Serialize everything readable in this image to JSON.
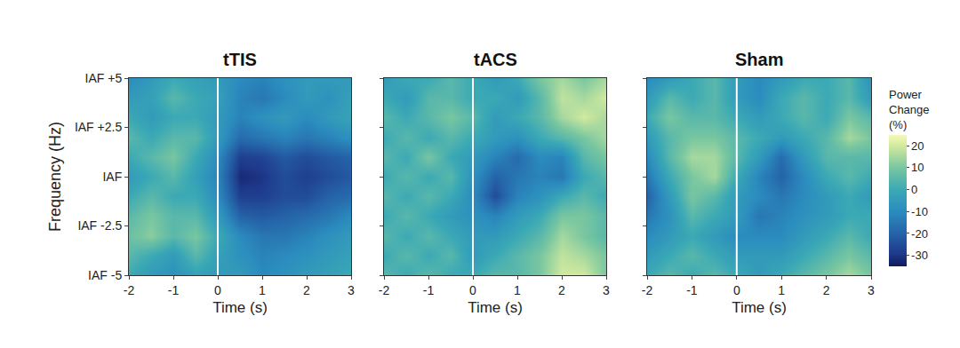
{
  "chart_data": [
    {
      "type": "heatmap",
      "title": "tTIS",
      "x_label": "Time (s)",
      "y_label": "Frequency (Hz)",
      "x": [
        -2,
        -1.5,
        -1,
        -0.5,
        0,
        0.5,
        1,
        1.5,
        2,
        2.5,
        3
      ],
      "y": [
        -5,
        -4,
        -3,
        -2,
        -1,
        0,
        1,
        2,
        3,
        4,
        5
      ],
      "z": [
        [
          0,
          -5,
          -8,
          -3,
          -5,
          -5,
          -10,
          -8,
          -5,
          -3,
          0
        ],
        [
          5,
          0,
          -5,
          5,
          -3,
          -8,
          -12,
          -10,
          -8,
          -5,
          -3
        ],
        [
          8,
          12,
          5,
          10,
          0,
          -10,
          -15,
          -15,
          -12,
          -8,
          -5
        ],
        [
          5,
          10,
          5,
          5,
          -5,
          -20,
          -22,
          -20,
          -18,
          -15,
          -10
        ],
        [
          0,
          5,
          0,
          0,
          -10,
          -28,
          -28,
          -25,
          -25,
          -20,
          -18
        ],
        [
          -5,
          0,
          5,
          -3,
          -12,
          -32,
          -30,
          -25,
          -28,
          -25,
          -22
        ],
        [
          0,
          5,
          10,
          0,
          -10,
          -28,
          -27,
          -22,
          -25,
          -22,
          -20
        ],
        [
          5,
          0,
          5,
          5,
          -5,
          -18,
          -15,
          -12,
          -15,
          -12,
          -8
        ],
        [
          0,
          -5,
          0,
          0,
          -5,
          -12,
          -8,
          -5,
          -10,
          -5,
          -2
        ],
        [
          -5,
          -3,
          5,
          0,
          -3,
          -12,
          -15,
          -10,
          -5,
          -8,
          -3
        ],
        [
          -10,
          -5,
          0,
          -3,
          -5,
          -10,
          -12,
          -8,
          -5,
          -5,
          -5
        ]
      ],
      "xlim": [
        -2,
        3
      ],
      "xticks": [
        -2,
        -1,
        0,
        1,
        2,
        3
      ],
      "ylim": [
        -5,
        5
      ],
      "yticks": [
        {
          "value": -5,
          "label": "IAF -5"
        },
        {
          "value": -2.5,
          "label": "IAF -2.5"
        },
        {
          "value": 0,
          "label": "IAF"
        },
        {
          "value": 2.5,
          "label": "IAF +2.5"
        },
        {
          "value": 5,
          "label": "IAF +5"
        }
      ],
      "zlim": [
        -35,
        25
      ],
      "vlines": [
        0
      ]
    },
    {
      "type": "heatmap",
      "title": "tACS",
      "x_label": "Time (s)",
      "tick_labels": "x",
      "x": [
        -2,
        -1.5,
        -1,
        -0.5,
        0,
        0.5,
        1,
        1.5,
        2,
        2.5,
        3
      ],
      "y": [
        -5,
        -4,
        -3,
        -2,
        -1,
        0,
        1,
        2,
        3,
        4,
        5
      ],
      "z": [
        [
          5,
          0,
          5,
          0,
          0,
          5,
          5,
          10,
          20,
          20,
          10
        ],
        [
          0,
          5,
          0,
          5,
          -5,
          0,
          5,
          10,
          18,
          15,
          10
        ],
        [
          5,
          0,
          5,
          0,
          -5,
          -5,
          0,
          5,
          15,
          10,
          5
        ],
        [
          0,
          5,
          0,
          -5,
          -8,
          -12,
          -5,
          0,
          10,
          10,
          5
        ],
        [
          5,
          0,
          5,
          0,
          -10,
          -25,
          -12,
          -8,
          0,
          5,
          0
        ],
        [
          0,
          5,
          0,
          5,
          -8,
          -20,
          -15,
          -12,
          -15,
          0,
          5
        ],
        [
          5,
          0,
          10,
          0,
          -5,
          -12,
          -18,
          -10,
          -12,
          5,
          10
        ],
        [
          0,
          5,
          0,
          5,
          0,
          -5,
          -8,
          0,
          5,
          10,
          15
        ],
        [
          5,
          0,
          5,
          10,
          5,
          -5,
          0,
          5,
          15,
          20,
          15
        ],
        [
          0,
          -5,
          5,
          5,
          0,
          0,
          -5,
          5,
          18,
          15,
          20
        ],
        [
          -5,
          0,
          0,
          5,
          0,
          -5,
          0,
          10,
          15,
          10,
          15
        ]
      ],
      "xlim": [
        -2,
        3
      ],
      "xticks": [
        -2,
        -1,
        0,
        1,
        2,
        3
      ],
      "ylim": [
        -5,
        5
      ],
      "yticks": [
        -5,
        -2.5,
        0,
        2.5,
        5
      ],
      "zlim": [
        -35,
        25
      ],
      "vlines": [
        0
      ]
    },
    {
      "type": "heatmap",
      "title": "Sham",
      "x_label": "Time (s)",
      "tick_labels": "x",
      "x": [
        -2,
        -1.5,
        -1,
        -0.5,
        0,
        0.5,
        1,
        1.5,
        2,
        2.5,
        3
      ],
      "y": [
        -5,
        -4,
        -3,
        -2,
        -1,
        0,
        1,
        2,
        3,
        4,
        5
      ],
      "z": [
        [
          0,
          5,
          0,
          5,
          0,
          -5,
          0,
          5,
          10,
          15,
          10
        ],
        [
          -5,
          0,
          5,
          0,
          -5,
          -5,
          -5,
          0,
          5,
          10,
          5
        ],
        [
          -10,
          -5,
          0,
          -5,
          -10,
          -10,
          -10,
          -5,
          0,
          5,
          0
        ],
        [
          -15,
          -8,
          5,
          0,
          -5,
          -15,
          -12,
          -8,
          -5,
          0,
          0
        ],
        [
          -20,
          -5,
          10,
          5,
          -5,
          -10,
          -15,
          -10,
          -5,
          0,
          -5
        ],
        [
          -15,
          0,
          10,
          15,
          0,
          -12,
          -20,
          -10,
          0,
          5,
          0
        ],
        [
          -10,
          5,
          15,
          15,
          5,
          -5,
          -18,
          -5,
          5,
          5,
          5
        ],
        [
          -5,
          5,
          10,
          10,
          5,
          0,
          -5,
          0,
          5,
          15,
          10
        ],
        [
          0,
          10,
          5,
          5,
          0,
          -5,
          0,
          5,
          0,
          10,
          5
        ],
        [
          -5,
          5,
          0,
          5,
          -5,
          -10,
          0,
          5,
          0,
          5,
          -5
        ],
        [
          -10,
          -5,
          0,
          5,
          -5,
          -10,
          -5,
          0,
          0,
          5,
          -8
        ]
      ],
      "xlim": [
        -2,
        3
      ],
      "xticks": [
        -2,
        -1,
        0,
        1,
        2,
        3
      ],
      "ylim": [
        -5,
        5
      ],
      "yticks": [
        -5,
        -2.5,
        0,
        2.5,
        5
      ],
      "zlim": [
        -35,
        25
      ],
      "zticks": [
        -30,
        -20,
        -10,
        0,
        10,
        20
      ],
      "colorbar_title": "Power Change (%)",
      "vlines": [
        0
      ]
    }
  ]
}
